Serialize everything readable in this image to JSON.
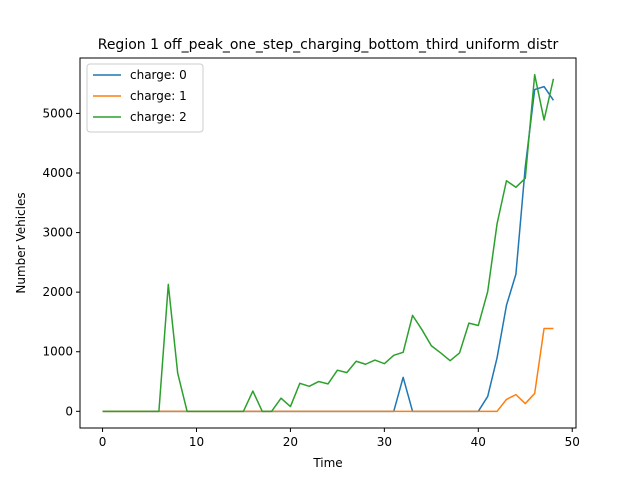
{
  "chart_data": {
    "type": "line",
    "title": "Region 1 off_peak_one_step_charging_bottom_third_uniform_distr",
    "xlabel": "Time",
    "ylabel": "Number Vehicles",
    "xlim": [
      -2.4,
      50.4
    ],
    "ylim": [
      -280,
      5930
    ],
    "xticks": [
      0,
      10,
      20,
      30,
      40,
      50
    ],
    "yticks": [
      0,
      1000,
      2000,
      3000,
      4000,
      5000
    ],
    "grid": false,
    "legend_position": "top-left",
    "x": [
      0,
      1,
      2,
      3,
      4,
      5,
      6,
      7,
      8,
      9,
      10,
      11,
      12,
      13,
      14,
      15,
      16,
      17,
      18,
      19,
      20,
      21,
      22,
      23,
      24,
      25,
      26,
      27,
      28,
      29,
      30,
      31,
      32,
      33,
      34,
      35,
      36,
      37,
      38,
      39,
      40,
      41,
      42,
      43,
      44,
      45,
      46,
      47,
      48
    ],
    "series": [
      {
        "name": "charge: 0",
        "color": "#1f77b4",
        "values": [
          0,
          0,
          0,
          0,
          0,
          0,
          0,
          0,
          0,
          0,
          0,
          0,
          0,
          0,
          0,
          0,
          0,
          0,
          0,
          0,
          0,
          0,
          0,
          0,
          0,
          0,
          0,
          0,
          0,
          0,
          0,
          0,
          570,
          0,
          0,
          0,
          0,
          0,
          0,
          0,
          0,
          250,
          900,
          1780,
          2300,
          4100,
          5400,
          5450,
          5220
        ]
      },
      {
        "name": "charge: 1",
        "color": "#ff7f0e",
        "values": [
          0,
          0,
          0,
          0,
          0,
          0,
          0,
          0,
          0,
          0,
          0,
          0,
          0,
          0,
          0,
          0,
          0,
          0,
          0,
          0,
          0,
          0,
          0,
          0,
          0,
          0,
          0,
          0,
          0,
          0,
          0,
          0,
          0,
          0,
          0,
          0,
          0,
          0,
          0,
          0,
          0,
          0,
          0,
          200,
          280,
          130,
          300,
          1390,
          1390
        ]
      },
      {
        "name": "charge: 2",
        "color": "#2ca02c",
        "values": [
          0,
          0,
          0,
          0,
          0,
          0,
          0,
          2130,
          640,
          0,
          0,
          0,
          0,
          0,
          0,
          0,
          340,
          0,
          0,
          220,
          80,
          470,
          420,
          500,
          460,
          690,
          650,
          840,
          790,
          860,
          800,
          940,
          990,
          1610,
          1370,
          1100,
          980,
          850,
          980,
          1480,
          1440,
          2010,
          3150,
          3870,
          3760,
          3910,
          5650,
          4890,
          5580
        ]
      }
    ]
  }
}
